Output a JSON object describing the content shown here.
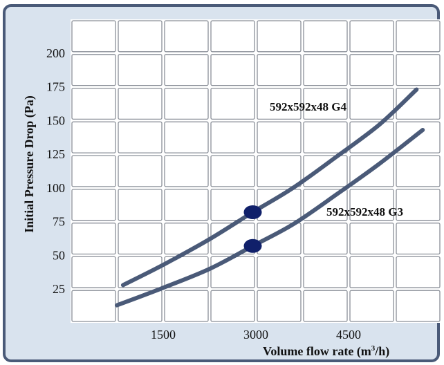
{
  "chart_data": {
    "type": "line",
    "xlabel": "Volume flow rate (m",
    "xlabel_sup": "3",
    "xlabel_end": "/h)",
    "ylabel": "Initial Pressure Drop (Pa)",
    "xlim": [
      0,
      6000
    ],
    "ylim": [
      0,
      225
    ],
    "x_ticks": [
      1500,
      3000,
      4500
    ],
    "y_ticks": [
      25,
      50,
      75,
      100,
      125,
      150,
      175,
      200
    ],
    "grid": true,
    "series": [
      {
        "name": "592x592x48 G4",
        "color": "#4a5a78",
        "points": [
          [
            850,
            28
          ],
          [
            1500,
            43
          ],
          [
            2250,
            62
          ],
          [
            2950,
            82
          ],
          [
            3600,
            100
          ],
          [
            4300,
            123
          ],
          [
            5000,
            147
          ],
          [
            5600,
            173
          ]
        ]
      },
      {
        "name": "592x592x48 G3",
        "color": "#4a5a78",
        "points": [
          [
            750,
            13
          ],
          [
            1500,
            26
          ],
          [
            2250,
            40
          ],
          [
            2950,
            57
          ],
          [
            3600,
            73
          ],
          [
            4300,
            95
          ],
          [
            5000,
            118
          ],
          [
            5700,
            143
          ]
        ]
      }
    ],
    "markers": [
      {
        "x": 2950,
        "y": 82,
        "color": "#10206a"
      },
      {
        "x": 2950,
        "y": 57,
        "color": "#10206a"
      }
    ]
  }
}
